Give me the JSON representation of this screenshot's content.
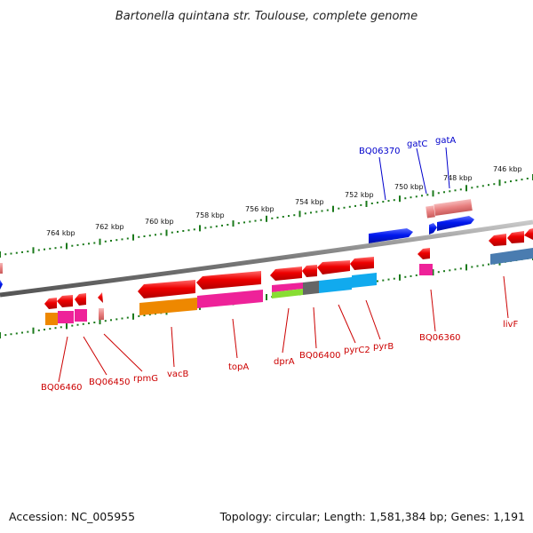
{
  "title": "Bartonella quintana str. Toulouse, complete genome",
  "scale_labels": [
    "764 kbp",
    "762 kbp",
    "760 kbp",
    "758 kbp",
    "756 kbp",
    "754 kbp",
    "752 kbp",
    "750 kbp",
    "748 kbp",
    "746 kbp"
  ],
  "gene_labels": {
    "bottom": [
      "BQ06460",
      "BQ06450",
      "rpmG",
      "vacB",
      "topA",
      "dprA",
      "BQ06400",
      "pyrC2",
      "pyrB",
      "BQ06360",
      "livF"
    ],
    "top": [
      "BQ06370",
      "gatC",
      "gatA"
    ]
  },
  "footer": {
    "accession": "Accession: NC_005955",
    "topology": "Topology: circular; Length: 1,581,384 bp; Genes: 1,191"
  },
  "colors": {
    "forward_gene": "#0018ee",
    "reverse_gene": "#ee0000",
    "pseudo_gene": "#e88080",
    "backbone": "#777777",
    "tick": "#1b7a1b",
    "cog_orange": "#ee8800",
    "cog_pink": "#ee2299",
    "cog_green": "#88dd33",
    "cog_gray": "#666666",
    "cog_cyan": "#11aaee",
    "cog_steel": "#4a7cb0"
  }
}
